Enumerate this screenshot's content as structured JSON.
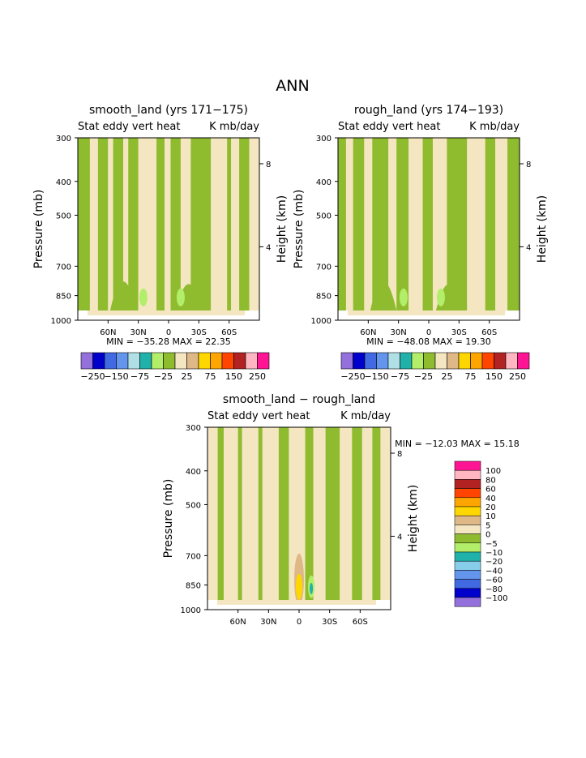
{
  "page_title": "ANN",
  "colors": {
    "purple": "#9370db",
    "blue_dark": "#0000cd",
    "blue": "#4169e1",
    "blue_light": "#6495ed",
    "sky": "#87ceeb",
    "lightblue": "#b0e0e6",
    "teal": "#20b2aa",
    "lime": "#b3ee6a",
    "green": "#8fbc2f",
    "beige": "#f5e6c2",
    "tan": "#deb887",
    "yellow": "#ffd700",
    "orange": "#ffa500",
    "orangered": "#ff4500",
    "brown": "#b22222",
    "pink": "#ffb6c1",
    "magenta": "#ff1493"
  },
  "chart_data": [
    {
      "type": "heatmap",
      "title": "smooth_land (yrs 171−175)",
      "subtitle_left": "Stat eddy vert heat",
      "subtitle_right": "K mb/day",
      "ylabel": "Pressure (mb)",
      "ylabel_right": "Height (km)",
      "y_ticks": [
        "300",
        "400",
        "500",
        "700",
        "850",
        "1000"
      ],
      "y_right_ticks": [
        "8",
        "4"
      ],
      "x_ticks": [
        "60N",
        "30N",
        "0",
        "30S",
        "60S"
      ],
      "stats": "MIN = −35.28   MAX =  22.35",
      "colorbar_labels": [
        "−250",
        "−150",
        "−75",
        "−25",
        "25",
        "75",
        "150",
        "250"
      ]
    },
    {
      "type": "heatmap",
      "title": "rough_land (yrs 174−193)",
      "subtitle_left": "Stat eddy vert heat",
      "subtitle_right": "K mb/day",
      "ylabel": "Pressure (mb)",
      "ylabel_right": "Height (km)",
      "y_ticks": [
        "300",
        "400",
        "500",
        "700",
        "850",
        "1000"
      ],
      "y_right_ticks": [
        "8",
        "4"
      ],
      "x_ticks": [
        "60N",
        "30N",
        "0",
        "30S",
        "60S"
      ],
      "stats": "MIN = −48.08   MAX =  19.30",
      "colorbar_labels": [
        "−250",
        "−150",
        "−75",
        "−25",
        "25",
        "75",
        "150",
        "250"
      ]
    },
    {
      "type": "heatmap",
      "title": "smooth_land − rough_land",
      "subtitle_left": "Stat eddy vert heat",
      "subtitle_right": "K mb/day",
      "ylabel": "Pressure (mb)",
      "ylabel_right": "Height (km)",
      "y_ticks": [
        "300",
        "400",
        "500",
        "700",
        "850",
        "1000"
      ],
      "y_right_ticks": [
        "8",
        "4"
      ],
      "x_ticks": [
        "60N",
        "30N",
        "0",
        "30S",
        "60S"
      ],
      "stats": "MIN = −12.03  MAX =  15.18",
      "colorbar_labels": [
        "100",
        "80",
        "60",
        "40",
        "20",
        "10",
        "5",
        "0",
        "−5",
        "−10",
        "−20",
        "−40",
        "−60",
        "−80",
        "−100"
      ]
    }
  ]
}
